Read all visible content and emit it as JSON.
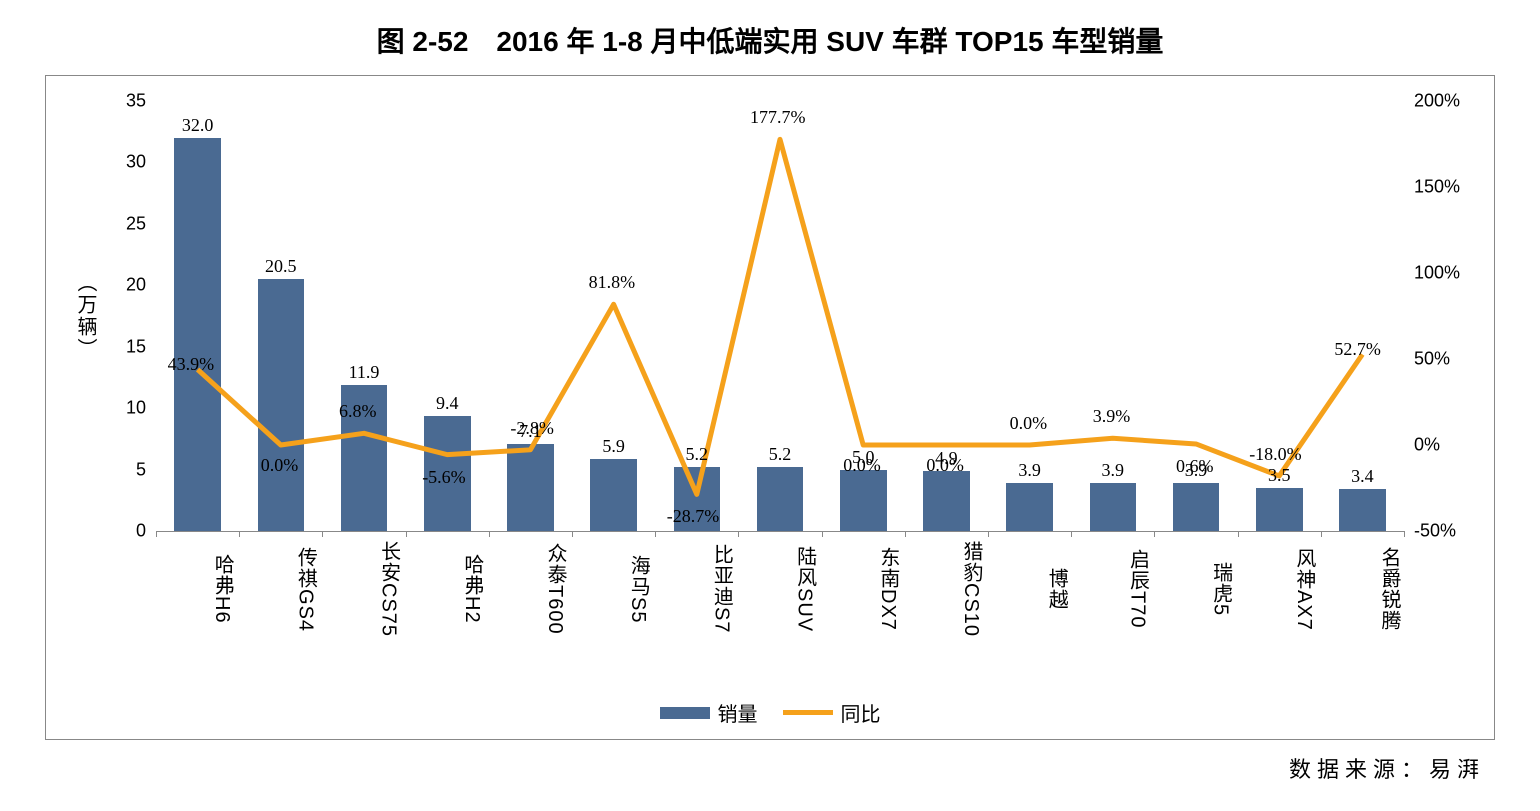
{
  "title": "图 2-52　2016 年 1-8 月中低端实用 SUV 车群 TOP15 车型销量",
  "source_label": "数据来源：易湃",
  "chart": {
    "type": "bar+line",
    "bar_color": "#4a6a92",
    "line_color": "#f5a11b",
    "line_width": 5,
    "background_color": "#ffffff",
    "grid_color": "#888888",
    "title_fontsize": 28,
    "tick_fontsize": 18,
    "label_fontsize": 20,
    "y_left": {
      "title": "（万辆）",
      "min": 0,
      "max": 35,
      "step": 5
    },
    "y_right": {
      "min": -50,
      "max": 200,
      "step": 50,
      "suffix": "%"
    },
    "categories": [
      "哈弗H6",
      "传祺GS4",
      "长安CS75",
      "哈弗H2",
      "众泰T600",
      "海马S5",
      "比亚迪S7",
      "陆风SUV",
      "东南DX7",
      "猎豹CS10",
      "博越",
      "启辰T70",
      "瑞虎5",
      "风神AX7",
      "名爵锐腾"
    ],
    "bar_series": {
      "name": "销量",
      "values": [
        32.0,
        20.5,
        11.9,
        9.4,
        7.1,
        5.9,
        5.2,
        5.2,
        5.0,
        4.9,
        3.9,
        3.9,
        3.9,
        3.5,
        3.4
      ],
      "labels": [
        "32.0",
        "20.5",
        "11.9",
        "9.4",
        "7.1",
        "5.9",
        "5.2",
        "5.2",
        "5.0",
        "4.9",
        "3.9",
        "3.9",
        "3.9",
        "3.5",
        "3.4"
      ]
    },
    "line_series": {
      "name": "同比",
      "values": [
        43.9,
        0.0,
        6.8,
        -5.6,
        -2.8,
        81.8,
        -28.7,
        177.7,
        0.0,
        0.0,
        0.0,
        3.9,
        0.6,
        -18.0,
        52.7
      ],
      "labels": [
        "43.9%",
        "0.0%",
        "6.8%",
        "-5.6%",
        "-2.8%",
        "81.8%",
        "-28.7%",
        "177.7%",
        "0.0%",
        "0.0%",
        "0.0%",
        "3.9%",
        "0.6%",
        "-18.0%",
        "52.7%"
      ]
    },
    "legend": {
      "bar_label": "销量",
      "line_label": "同比"
    }
  }
}
